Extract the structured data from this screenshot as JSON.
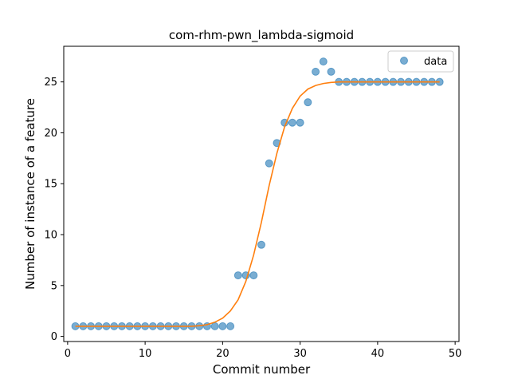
{
  "chart_data": {
    "type": "scatter",
    "title": "com-rhm-pwn_lambda-sigmoid",
    "xlabel": "Commit number",
    "ylabel": "Number of instance of a feature",
    "xlim": [
      -0.5,
      50.5
    ],
    "ylim": [
      -0.5,
      28.5
    ],
    "xticks": [
      0,
      10,
      20,
      30,
      40,
      50
    ],
    "yticks": [
      0,
      5,
      10,
      15,
      20,
      25
    ],
    "grid": false,
    "legend": {
      "position": "top-right",
      "entries": [
        "data"
      ]
    },
    "series": [
      {
        "name": "data",
        "kind": "scatter",
        "color": "#1f77b4",
        "x": [
          1,
          2,
          3,
          4,
          5,
          6,
          7,
          8,
          9,
          10,
          11,
          12,
          13,
          14,
          15,
          16,
          17,
          18,
          19,
          20,
          21,
          22,
          23,
          24,
          25,
          26,
          27,
          28,
          29,
          30,
          31,
          32,
          33,
          34,
          35,
          36,
          37,
          38,
          39,
          40,
          41,
          42,
          43,
          44,
          45,
          46,
          47,
          48
        ],
        "y": [
          1,
          1,
          1,
          1,
          1,
          1,
          1,
          1,
          1,
          1,
          1,
          1,
          1,
          1,
          1,
          1,
          1,
          1,
          1,
          1,
          1,
          6,
          6,
          6,
          9,
          17,
          19,
          21,
          21,
          21,
          23,
          26,
          27,
          26,
          25,
          25,
          25,
          25,
          25,
          25,
          25,
          25,
          25,
          25,
          25,
          25,
          25,
          25
        ]
      },
      {
        "kind": "line",
        "color": "#ff7f0e",
        "x": [
          1,
          2,
          3,
          4,
          5,
          6,
          7,
          8,
          9,
          10,
          11,
          12,
          13,
          14,
          15,
          16,
          17,
          18,
          19,
          20,
          21,
          22,
          23,
          24,
          25,
          26,
          27,
          28,
          29,
          30,
          31,
          32,
          33,
          34,
          35,
          36,
          37,
          38,
          39,
          40,
          41,
          42,
          43,
          44,
          45,
          46,
          47,
          48
        ],
        "y": [
          1,
          1,
          1,
          1,
          1,
          1,
          1,
          1,
          1,
          1,
          1,
          1,
          1,
          1,
          1,
          1,
          1.05,
          1.15,
          1.4,
          1.8,
          2.5,
          3.6,
          5.4,
          8.0,
          11.2,
          14.8,
          18.0,
          20.6,
          22.4,
          23.6,
          24.3,
          24.65,
          24.85,
          24.95,
          25,
          25,
          25,
          25,
          25,
          25,
          25,
          25,
          25,
          25,
          25,
          25,
          25,
          25
        ]
      }
    ]
  }
}
